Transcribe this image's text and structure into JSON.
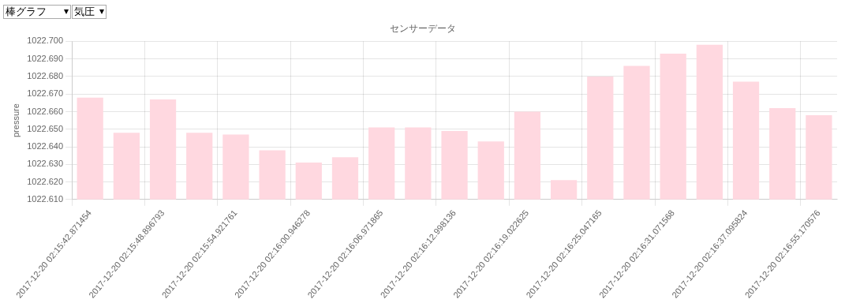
{
  "chart_data": {
    "type": "bar",
    "title": "センサーデータ",
    "ylabel": "pressure",
    "annotations": [
      "棒グラフ",
      "気圧"
    ],
    "categories": [
      "2017-12-20 02:15:42.871454",
      null,
      "2017-12-20 02:15:48.896793",
      null,
      "2017-12-20 02:15:54.921761",
      null,
      "2017-12-20 02:16:00.946278",
      null,
      "2017-12-20 02:16:06.971865",
      null,
      "2017-12-20 02:16:12.998136",
      null,
      "2017-12-20 02:16:19.022625",
      null,
      "2017-12-20 02:16:25.047165",
      null,
      "2017-12-20 02:16:31.071568",
      null,
      "2017-12-20 02:16:37.095824",
      null,
      "2017-12-20 02:16:55.170576"
    ],
    "values": [
      1022.668,
      1022.648,
      1022.667,
      1022.648,
      1022.647,
      1022.638,
      1022.631,
      1022.634,
      1022.651,
      1022.651,
      1022.649,
      1022.643,
      1022.66,
      1022.621,
      1022.68,
      1022.686,
      1022.693,
      1022.698,
      1022.677,
      1022.662,
      1022.658
    ],
    "color": "#ffd8e0",
    "ylim": [
      1022.61,
      1022.7
    ],
    "yticks": [
      {
        "value": 1022.61,
        "label": "1022.610"
      },
      {
        "value": 1022.62,
        "label": "1022.620"
      },
      {
        "value": 1022.63,
        "label": "1022.630"
      },
      {
        "value": 1022.64,
        "label": "1022.640"
      },
      {
        "value": 1022.65,
        "label": "1022.650"
      },
      {
        "value": 1022.66,
        "label": "1022.660"
      },
      {
        "value": 1022.67,
        "label": "1022.670"
      },
      {
        "value": 1022.68,
        "label": "1022.680"
      },
      {
        "value": 1022.69,
        "label": "1022.690"
      },
      {
        "value": 1022.7,
        "label": "1022.700"
      }
    ],
    "grid": true
  }
}
